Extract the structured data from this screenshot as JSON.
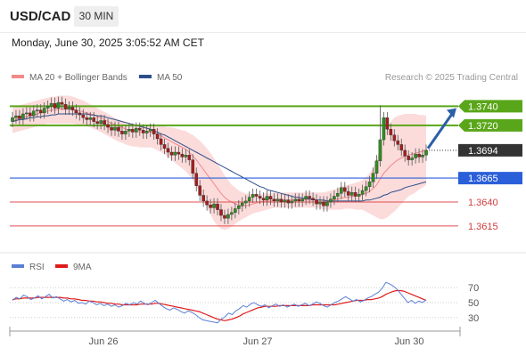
{
  "header": {
    "symbol": "USD/CAD",
    "timeframe": "30 MIN"
  },
  "date_text": "Monday, June 30, 2025 3:05:52 AM CET",
  "chart_data": [
    {
      "type": "candlestick",
      "legend": [
        {
          "name": "MA 20 + Bollinger Bands",
          "color": "#f08a8a"
        },
        {
          "name": "MA 50",
          "color": "#2c4f8a"
        }
      ],
      "watermark": "Research © 2025 Trading Central",
      "y_range": [
        1.36,
        1.3758
      ],
      "levels": [
        {
          "value": 1.374,
          "label": "1.3740",
          "kind": "resistance",
          "color": "#5aa61a"
        },
        {
          "value": 1.372,
          "label": "1.3720",
          "kind": "resistance",
          "color": "#5aa61a"
        },
        {
          "value": 1.3694,
          "label": "1.3694",
          "kind": "last-price",
          "color": "#333333"
        },
        {
          "value": 1.3665,
          "label": "1.3665",
          "kind": "pivot",
          "color": "#2b5fd9"
        },
        {
          "value": 1.364,
          "label": "1.3640",
          "kind": "support",
          "color": "#e05050"
        },
        {
          "value": 1.3615,
          "label": "1.3615",
          "kind": "support",
          "color": "#e05050"
        }
      ],
      "x_ticks": [
        "Jun 26",
        "Jun 27",
        "Jun 30"
      ],
      "closes": [
        1.3728,
        1.373,
        1.3727,
        1.3732,
        1.3733,
        1.373,
        1.3735,
        1.3736,
        1.3733,
        1.3738,
        1.374,
        1.3743,
        1.3738,
        1.3744,
        1.3742,
        1.3737,
        1.3739,
        1.3736,
        1.3733,
        1.3731,
        1.3728,
        1.3726,
        1.3728,
        1.3724,
        1.3722,
        1.3725,
        1.3721,
        1.3718,
        1.3715,
        1.3718,
        1.3714,
        1.3711,
        1.3714,
        1.3716,
        1.3713,
        1.3717,
        1.3715,
        1.3712,
        1.3714,
        1.3716,
        1.3711,
        1.3706,
        1.37,
        1.3696,
        1.3692,
        1.3689,
        1.3692,
        1.369,
        1.3687,
        1.3689,
        1.3684,
        1.367,
        1.3657,
        1.3647,
        1.3641,
        1.3637,
        1.3634,
        1.3638,
        1.3632,
        1.3626,
        1.3623,
        1.3627,
        1.3629,
        1.3633,
        1.3636,
        1.3639,
        1.3641,
        1.3645,
        1.3648,
        1.3646,
        1.3644,
        1.3642,
        1.3646,
        1.3643,
        1.3641,
        1.3643,
        1.364,
        1.3642,
        1.3639,
        1.3641,
        1.3643,
        1.3641,
        1.3643,
        1.3646,
        1.3644,
        1.3642,
        1.3638,
        1.364,
        1.3636,
        1.364,
        1.3643,
        1.3646,
        1.3649,
        1.3655,
        1.3651,
        1.3647,
        1.365,
        1.3646,
        1.3648,
        1.3652,
        1.3656,
        1.3661,
        1.367,
        1.3683,
        1.3705,
        1.3728,
        1.3716,
        1.371,
        1.3704,
        1.37,
        1.3694,
        1.3688,
        1.3684,
        1.3686,
        1.369,
        1.3687,
        1.3689,
        1.3694
      ],
      "bands": {
        "ma20": [
          1.3724,
          1.3726,
          1.3727,
          1.3728,
          1.3729,
          1.373,
          1.3731,
          1.3732,
          1.3733,
          1.3734,
          1.3735,
          1.3736,
          1.3736,
          1.3737,
          1.3737,
          1.3737,
          1.3737,
          1.3737,
          1.3736,
          1.3735,
          1.3734,
          1.3733,
          1.3732,
          1.3731,
          1.3729,
          1.3728,
          1.3726,
          1.3724,
          1.3722,
          1.3721,
          1.3719,
          1.3718,
          1.3716,
          1.3715,
          1.3714,
          1.3714,
          1.3713,
          1.3713,
          1.3713,
          1.3713,
          1.3712,
          1.3711,
          1.3709,
          1.3707,
          1.3705,
          1.3703,
          1.3701,
          1.3699,
          1.3697,
          1.3695,
          1.3692,
          1.3688,
          1.3684,
          1.3679,
          1.3674,
          1.3669,
          1.3664,
          1.3659,
          1.3654,
          1.3649,
          1.3645,
          1.3642,
          1.364,
          1.3638,
          1.3637,
          1.3636,
          1.3636,
          1.3637,
          1.3638,
          1.3639,
          1.364,
          1.3641,
          1.3641,
          1.3641,
          1.3642,
          1.3642,
          1.3642,
          1.3642,
          1.3642,
          1.3642,
          1.3642,
          1.3642,
          1.3642,
          1.3642,
          1.3642,
          1.3642,
          1.3642,
          1.3642,
          1.3641,
          1.3641,
          1.3642,
          1.3642,
          1.3643,
          1.3644,
          1.3645,
          1.3645,
          1.3646,
          1.3646,
          1.3647,
          1.3648,
          1.3649,
          1.3651,
          1.3654,
          1.3658,
          1.3664,
          1.367,
          1.3674,
          1.3678,
          1.3681,
          1.3684,
          1.3686,
          1.3688,
          1.3689,
          1.369,
          1.3691,
          1.3692,
          1.3693,
          1.3694
        ],
        "upper": [
          1.3738,
          1.374,
          1.3741,
          1.3742,
          1.3743,
          1.3744,
          1.3745,
          1.3746,
          1.3747,
          1.3748,
          1.3749,
          1.375,
          1.375,
          1.3751,
          1.3751,
          1.3751,
          1.3751,
          1.375,
          1.3749,
          1.3747,
          1.3746,
          1.3744,
          1.3742,
          1.374,
          1.3738,
          1.3736,
          1.3734,
          1.3732,
          1.373,
          1.3728,
          1.3726,
          1.3725,
          1.3724,
          1.3723,
          1.3722,
          1.3721,
          1.3721,
          1.372,
          1.372,
          1.372,
          1.372,
          1.372,
          1.3719,
          1.3719,
          1.3718,
          1.3718,
          1.3717,
          1.3716,
          1.3715,
          1.3714,
          1.3712,
          1.371,
          1.3707,
          1.3704,
          1.37,
          1.3696,
          1.3691,
          1.3686,
          1.368,
          1.3674,
          1.3668,
          1.3663,
          1.3658,
          1.3655,
          1.3652,
          1.365,
          1.3649,
          1.3648,
          1.3648,
          1.3648,
          1.3648,
          1.3649,
          1.3649,
          1.3649,
          1.365,
          1.365,
          1.365,
          1.365,
          1.365,
          1.365,
          1.365,
          1.365,
          1.365,
          1.365,
          1.365,
          1.365,
          1.365,
          1.365,
          1.365,
          1.3651,
          1.3652,
          1.3653,
          1.3654,
          1.3656,
          1.3657,
          1.3658,
          1.3659,
          1.366,
          1.3661,
          1.3663,
          1.3666,
          1.367,
          1.3676,
          1.3684,
          1.3696,
          1.371,
          1.3718,
          1.3724,
          1.3728,
          1.373,
          1.3731,
          1.3732,
          1.3732,
          1.3732,
          1.3732,
          1.3731,
          1.3731,
          1.373
        ],
        "lower": [
          1.3712,
          1.3713,
          1.3714,
          1.3715,
          1.3716,
          1.3717,
          1.3718,
          1.3719,
          1.372,
          1.3721,
          1.3722,
          1.3722,
          1.3722,
          1.3722,
          1.3722,
          1.3722,
          1.3722,
          1.3722,
          1.3721,
          1.3721,
          1.372,
          1.3719,
          1.3718,
          1.3716,
          1.3715,
          1.3713,
          1.3711,
          1.3709,
          1.3707,
          1.3705,
          1.3703,
          1.3702,
          1.37,
          1.3699,
          1.3698,
          1.3698,
          1.3697,
          1.3697,
          1.3697,
          1.3697,
          1.3696,
          1.3694,
          1.3692,
          1.369,
          1.3687,
          1.3684,
          1.3681,
          1.3678,
          1.3675,
          1.3672,
          1.3668,
          1.3663,
          1.3656,
          1.3649,
          1.3641,
          1.3634,
          1.3627,
          1.362,
          1.3615,
          1.3612,
          1.3611,
          1.3612,
          1.3614,
          1.3617,
          1.362,
          1.3622,
          1.3624,
          1.3626,
          1.3628,
          1.3629,
          1.363,
          1.3631,
          1.3632,
          1.3633,
          1.3634,
          1.3634,
          1.3634,
          1.3634,
          1.3634,
          1.3634,
          1.3634,
          1.3634,
          1.3634,
          1.3634,
          1.3634,
          1.3634,
          1.3634,
          1.3634,
          1.3632,
          1.3632,
          1.3632,
          1.3632,
          1.3632,
          1.3632,
          1.3633,
          1.3633,
          1.3633,
          1.3632,
          1.3632,
          1.3632,
          1.363,
          1.3628,
          1.3626,
          1.3624,
          1.3622,
          1.3622,
          1.3624,
          1.3627,
          1.363,
          1.3634,
          1.3638,
          1.3642,
          1.3646,
          1.3648,
          1.365,
          1.3653,
          1.3655,
          1.3658
        ]
      },
      "ma50": [
        1.3724,
        1.3725,
        1.3726,
        1.3726,
        1.3727,
        1.3728,
        1.3728,
        1.3729,
        1.3729,
        1.373,
        1.373,
        1.3731,
        1.3731,
        1.3732,
        1.3732,
        1.3732,
        1.3732,
        1.3732,
        1.3732,
        1.3732,
        1.3732,
        1.3732,
        1.3731,
        1.3731,
        1.373,
        1.373,
        1.3729,
        1.3728,
        1.3727,
        1.3726,
        1.3725,
        1.3724,
        1.3723,
        1.3722,
        1.3721,
        1.372,
        1.3719,
        1.3718,
        1.3717,
        1.3716,
        1.3714,
        1.3713,
        1.3711,
        1.371,
        1.3708,
        1.3706,
        1.3704,
        1.3702,
        1.37,
        1.3698,
        1.3696,
        1.3694,
        1.3692,
        1.369,
        1.3688,
        1.3686,
        1.3684,
        1.3682,
        1.368,
        1.3678,
        1.3676,
        1.3674,
        1.3672,
        1.367,
        1.3668,
        1.3666,
        1.3664,
        1.3662,
        1.366,
        1.3658,
        1.3656,
        1.3655,
        1.3653,
        1.3652,
        1.3651,
        1.365,
        1.3649,
        1.3648,
        1.3647,
        1.3646,
        1.3645,
        1.3645,
        1.3644,
        1.3644,
        1.3643,
        1.3643,
        1.3642,
        1.3642,
        1.3642,
        1.3641,
        1.3641,
        1.3641,
        1.3641,
        1.3641,
        1.3641,
        1.3641,
        1.3641,
        1.3641,
        1.3641,
        1.3641,
        1.3642,
        1.3642,
        1.3643,
        1.3644,
        1.3645,
        1.3647,
        1.3648,
        1.365,
        1.3651,
        1.3652,
        1.3653,
        1.3655,
        1.3656,
        1.3657,
        1.3658,
        1.3659,
        1.366,
        1.3661
      ]
    },
    {
      "type": "line",
      "legend": [
        {
          "name": "RSI",
          "color": "#5b7fd6"
        },
        {
          "name": "9MA",
          "color": "#e01a1a"
        }
      ],
      "y_ticks": [
        70,
        50,
        30
      ],
      "y_range": [
        18,
        82
      ],
      "series": [
        {
          "name": "RSI",
          "values": [
            53,
            57,
            55,
            60,
            58,
            54,
            56,
            59,
            55,
            58,
            61,
            56,
            58,
            55,
            52,
            54,
            51,
            53,
            49,
            50,
            48,
            52,
            50,
            47,
            49,
            46,
            48,
            45,
            47,
            44,
            46,
            49,
            47,
            50,
            48,
            52,
            49,
            47,
            50,
            53,
            49,
            45,
            42,
            40,
            43,
            41,
            38,
            36,
            39,
            37,
            34,
            30,
            27,
            26,
            25,
            24,
            23,
            28,
            31,
            36,
            34,
            39,
            42,
            46,
            44,
            48,
            50,
            47,
            45,
            47,
            43,
            46,
            48,
            45,
            47,
            44,
            46,
            48,
            45,
            47,
            49,
            46,
            48,
            51,
            49,
            46,
            44,
            47,
            50,
            52,
            55,
            58,
            55,
            52,
            54,
            51,
            53,
            56,
            58,
            61,
            64,
            69,
            77,
            75,
            72,
            68,
            62,
            56,
            50,
            53,
            49,
            52,
            50,
            54
          ]
        },
        {
          "name": "9MA",
          "values": [
            54,
            55,
            55,
            56,
            56,
            56,
            56,
            57,
            57,
            57,
            57,
            57,
            57,
            57,
            56,
            56,
            55,
            55,
            54,
            53,
            53,
            52,
            52,
            51,
            51,
            50,
            49,
            49,
            48,
            48,
            47,
            47,
            47,
            47,
            47,
            48,
            48,
            48,
            48,
            49,
            49,
            48,
            47,
            46,
            45,
            44,
            43,
            42,
            41,
            40,
            39,
            38,
            36,
            34,
            32,
            30,
            28,
            27,
            26,
            27,
            28,
            30,
            32,
            35,
            37,
            39,
            41,
            43,
            44,
            45,
            45,
            45,
            45,
            46,
            46,
            46,
            46,
            46,
            46,
            46,
            46,
            46,
            47,
            47,
            47,
            47,
            47,
            47,
            47,
            48,
            49,
            50,
            51,
            52,
            53,
            53,
            53,
            54,
            54,
            55,
            56,
            58,
            61,
            63,
            65,
            66,
            66,
            65,
            63,
            61,
            59,
            57,
            55,
            53
          ]
        }
      ]
    }
  ]
}
